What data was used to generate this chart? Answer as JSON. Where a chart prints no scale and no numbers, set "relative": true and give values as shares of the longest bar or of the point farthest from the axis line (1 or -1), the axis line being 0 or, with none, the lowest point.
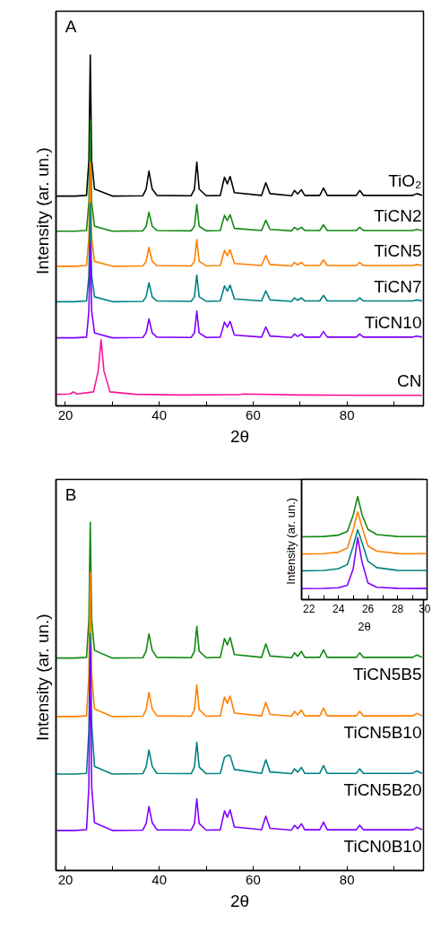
{
  "chart_data": [
    {
      "type": "line",
      "relative": true,
      "xlabel": "2θ",
      "ylabel": "Intensity  (ar. un.)",
      "annotations": [
        "A"
      ],
      "xlim": [
        18,
        96.3
      ],
      "xticks": [
        20,
        {
          "value": 30,
          "label": null
        },
        40,
        {
          "value": 50,
          "label": null
        },
        60,
        {
          "value": 70,
          "label": null
        },
        80,
        {
          "value": 90,
          "label": null
        }
      ],
      "x": [
        18,
        22,
        24.5,
        25.0,
        25.3,
        25.6,
        26.2,
        30,
        36.5,
        37.2,
        37.8,
        38.5,
        39.5,
        46.8,
        47.5,
        48.0,
        48.5,
        50,
        53.0,
        53.9,
        54.5,
        55.1,
        56.0,
        61.8,
        62.7,
        63.6,
        68.2,
        68.8,
        69.5,
        70.3,
        71.0,
        74.2,
        75.0,
        75.8,
        82.0,
        82.7,
        83.5,
        94.0,
        94.9,
        96
      ],
      "series": [
        {
          "name": "TiO₂",
          "color": "#000000",
          "values": [
            0.598,
            0.598,
            0.6,
            0.7,
            1.0,
            0.7,
            0.618,
            0.598,
            0.599,
            0.618,
            0.669,
            0.618,
            0.6,
            0.599,
            0.618,
            0.695,
            0.618,
            0.599,
            0.6,
            0.652,
            0.633,
            0.654,
            0.608,
            0.6,
            0.636,
            0.605,
            0.599,
            0.614,
            0.604,
            0.616,
            0.6,
            0.6,
            0.621,
            0.6,
            0.6,
            0.614,
            0.6,
            0.6,
            0.605,
            0.6
          ]
        },
        {
          "name": "TiCN2",
          "color": "#118811",
          "values": [
            0.498,
            0.498,
            0.5,
            0.58,
            0.815,
            0.58,
            0.512,
            0.498,
            0.499,
            0.512,
            0.552,
            0.512,
            0.5,
            0.499,
            0.512,
            0.574,
            0.512,
            0.499,
            0.5,
            0.543,
            0.528,
            0.545,
            0.506,
            0.5,
            0.529,
            0.503,
            0.499,
            0.509,
            0.502,
            0.509,
            0.5,
            0.5,
            0.516,
            0.5,
            0.5,
            0.509,
            0.5,
            0.5,
            0.503,
            0.5
          ]
        },
        {
          "name": "TiCN5",
          "color": "#ff8000",
          "values": [
            0.398,
            0.398,
            0.4,
            0.48,
            0.694,
            0.48,
            0.412,
            0.398,
            0.399,
            0.412,
            0.452,
            0.412,
            0.4,
            0.399,
            0.412,
            0.474,
            0.412,
            0.399,
            0.4,
            0.443,
            0.428,
            0.445,
            0.406,
            0.4,
            0.429,
            0.403,
            0.399,
            0.409,
            0.402,
            0.409,
            0.4,
            0.4,
            0.416,
            0.4,
            0.4,
            0.409,
            0.4,
            0.4,
            0.403,
            0.4
          ]
        },
        {
          "name": "TiCN7",
          "color": "#008080",
          "values": [
            0.297,
            0.297,
            0.299,
            0.37,
            0.578,
            0.37,
            0.311,
            0.297,
            0.298,
            0.311,
            0.351,
            0.311,
            0.299,
            0.298,
            0.311,
            0.373,
            0.311,
            0.298,
            0.299,
            0.342,
            0.327,
            0.344,
            0.305,
            0.299,
            0.328,
            0.302,
            0.298,
            0.308,
            0.301,
            0.308,
            0.299,
            0.299,
            0.315,
            0.299,
            0.299,
            0.308,
            0.299,
            0.299,
            0.302,
            0.299
          ]
        },
        {
          "name": "TiCN10",
          "color": "#8000ff",
          "values": [
            0.194,
            0.194,
            0.196,
            0.27,
            0.462,
            0.27,
            0.208,
            0.194,
            0.195,
            0.208,
            0.248,
            0.208,
            0.196,
            0.195,
            0.208,
            0.27,
            0.208,
            0.195,
            0.196,
            0.239,
            0.224,
            0.241,
            0.202,
            0.196,
            0.225,
            0.199,
            0.195,
            0.205,
            0.198,
            0.205,
            0.196,
            0.196,
            0.212,
            0.196,
            0.196,
            0.205,
            0.196,
            0.196,
            0.199,
            0.196
          ]
        },
        {
          "name": "CN",
          "color": "#ff1493",
          "x": [
            18,
            21.0,
            21.7,
            22.5,
            26.0,
            27.0,
            27.6,
            28.2,
            29.5,
            35,
            45,
            57,
            58,
            70,
            85,
            96
          ],
          "values": [
            0.033,
            0.034,
            0.04,
            0.034,
            0.04,
            0.1,
            0.189,
            0.1,
            0.04,
            0.033,
            0.031,
            0.032,
            0.034,
            0.031,
            0.03,
            0.03
          ]
        }
      ]
    },
    {
      "type": "line",
      "relative": true,
      "xlabel": "2θ",
      "ylabel": "Intensity  (ar. un.)",
      "annotations": [
        "B"
      ],
      "xlim": [
        18,
        96.3
      ],
      "xticks": [
        20,
        {
          "value": 30,
          "label": null
        },
        40,
        {
          "value": 50,
          "label": null
        },
        60,
        {
          "value": 70,
          "label": null
        },
        80,
        {
          "value": 90,
          "label": null
        }
      ],
      "x": [
        18,
        22,
        24.5,
        25.0,
        25.3,
        25.6,
        26.2,
        30,
        36.5,
        37.2,
        37.8,
        38.5,
        39.5,
        46.8,
        47.5,
        48.0,
        48.5,
        50,
        53.0,
        53.9,
        54.5,
        55.1,
        56.0,
        61.8,
        62.7,
        63.6,
        68.2,
        68.8,
        69.5,
        70.3,
        71.0,
        74.2,
        75.0,
        75.8,
        82.0,
        82.7,
        83.5,
        94.0,
        94.9,
        96
      ],
      "series": [
        {
          "name": "TiCN5B5",
          "color": "#118811",
          "values": [
            0.61,
            0.61,
            0.612,
            0.72,
            1.0,
            0.72,
            0.632,
            0.61,
            0.611,
            0.63,
            0.679,
            0.632,
            0.612,
            0.611,
            0.63,
            0.701,
            0.63,
            0.611,
            0.612,
            0.666,
            0.648,
            0.669,
            0.62,
            0.612,
            0.651,
            0.616,
            0.611,
            0.625,
            0.615,
            0.629,
            0.612,
            0.612,
            0.634,
            0.612,
            0.612,
            0.625,
            0.612,
            0.612,
            0.619,
            0.612
          ]
        },
        {
          "name": "TiCN5B10",
          "color": "#ff8000",
          "values": [
            0.442,
            0.442,
            0.444,
            0.56,
            0.857,
            0.56,
            0.464,
            0.442,
            0.443,
            0.462,
            0.511,
            0.464,
            0.444,
            0.443,
            0.462,
            0.533,
            0.462,
            0.443,
            0.444,
            0.498,
            0.48,
            0.501,
            0.452,
            0.444,
            0.483,
            0.448,
            0.443,
            0.457,
            0.447,
            0.461,
            0.444,
            0.444,
            0.466,
            0.444,
            0.444,
            0.457,
            0.444,
            0.444,
            0.451,
            0.444
          ]
        },
        {
          "name": "TiCN5B20",
          "color": "#008080",
          "values": [
            0.277,
            0.277,
            0.279,
            0.4,
            0.68,
            0.42,
            0.299,
            0.277,
            0.278,
            0.297,
            0.346,
            0.299,
            0.279,
            0.278,
            0.297,
            0.368,
            0.297,
            0.278,
            0.279,
            0.325,
            0.33,
            0.33,
            0.29,
            0.279,
            0.318,
            0.283,
            0.278,
            0.292,
            0.282,
            0.296,
            0.279,
            0.279,
            0.301,
            0.279,
            0.279,
            0.292,
            0.279,
            0.279,
            0.286,
            0.279
          ]
        },
        {
          "name": "TiCN0B10",
          "color": "#8000ff",
          "values": [
            0.115,
            0.115,
            0.117,
            0.24,
            0.645,
            0.24,
            0.137,
            0.115,
            0.116,
            0.135,
            0.184,
            0.137,
            0.117,
            0.116,
            0.135,
            0.206,
            0.135,
            0.116,
            0.117,
            0.171,
            0.153,
            0.174,
            0.125,
            0.117,
            0.156,
            0.121,
            0.116,
            0.13,
            0.12,
            0.134,
            0.117,
            0.117,
            0.139,
            0.117,
            0.117,
            0.13,
            0.117,
            0.117,
            0.124,
            0.117
          ]
        }
      ]
    },
    {
      "type": "line",
      "relative": true,
      "xlabel": "2θ",
      "ylabel": "Intensity  (ar. un.)",
      "xlim": [
        21.5,
        30.0
      ],
      "xticks": [
        22,
        {
          "value": 23,
          "label": null
        },
        24,
        {
          "value": 25,
          "label": null
        },
        26,
        {
          "value": 27,
          "label": null
        },
        28,
        {
          "value": 29,
          "label": null
        },
        30
      ],
      "x": [
        21.5,
        23.0,
        24.0,
        24.6,
        25.0,
        25.3,
        25.6,
        26.0,
        26.6,
        28.0,
        30.0
      ],
      "series": [
        {
          "color": "#118811",
          "values": [
            0.609,
            0.612,
            0.625,
            0.66,
            0.82,
            1.0,
            0.82,
            0.68,
            0.63,
            0.612,
            0.611
          ]
        },
        {
          "color": "#ff8000",
          "values": [
            0.442,
            0.445,
            0.46,
            0.5,
            0.68,
            0.852,
            0.7,
            0.52,
            0.47,
            0.447,
            0.445
          ]
        },
        {
          "color": "#008080",
          "values": [
            0.279,
            0.282,
            0.3,
            0.34,
            0.52,
            0.678,
            0.55,
            0.37,
            0.31,
            0.284,
            0.282
          ]
        },
        {
          "color": "#8000ff",
          "values": [
            0.107,
            0.109,
            0.115,
            0.14,
            0.3,
            0.601,
            0.36,
            0.16,
            0.12,
            0.11,
            0.108
          ]
        }
      ]
    }
  ]
}
